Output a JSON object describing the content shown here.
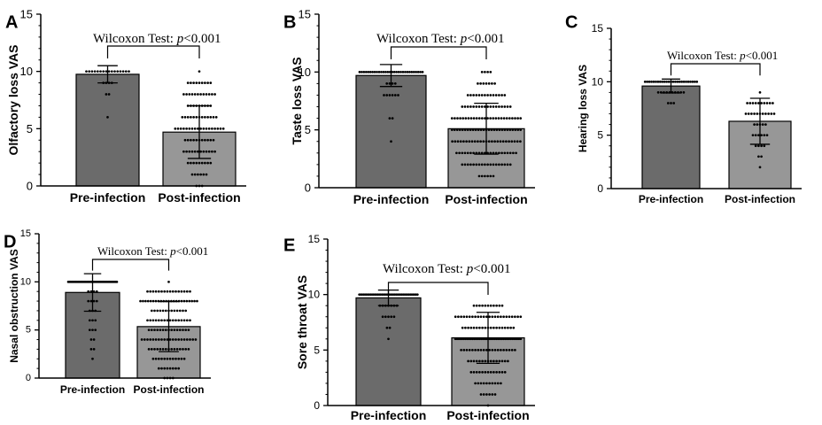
{
  "figure": {
    "annotation_label": "Wilcoxon Test: ",
    "annotation_p": "p",
    "annotation_value": "<0.001"
  },
  "colors": {
    "pre": "#6b6b6b",
    "post": "#979797",
    "ink": "#000000"
  },
  "chart_data": [
    {
      "panel": "A",
      "type": "bar",
      "ylabel": "Olfactory loss VAS",
      "categories": [
        "Pre-infection",
        "Post-infection"
      ],
      "values": [
        9.75,
        4.7
      ],
      "sd": [
        0.75,
        2.3
      ],
      "ylim": [
        0,
        15
      ],
      "yticks": [
        0,
        5,
        10,
        15
      ],
      "annotation": "Wilcoxon Test: p<0.001",
      "points": [
        [
          10,
          10,
          10,
          10,
          10,
          10,
          10,
          10,
          10,
          10,
          10,
          10,
          10,
          10,
          10,
          10,
          9,
          9,
          9,
          9,
          8,
          8,
          6
        ],
        [
          10,
          9,
          9,
          9,
          9,
          9,
          9,
          9,
          9,
          9,
          8,
          8,
          8,
          8,
          8,
          8,
          8,
          8,
          8,
          8,
          8,
          8,
          7,
          7,
          7,
          7,
          7,
          7,
          7,
          7,
          7,
          6,
          6,
          6,
          6,
          6,
          6,
          6,
          6,
          6,
          6,
          6,
          6,
          6,
          5,
          5,
          5,
          5,
          5,
          5,
          5,
          5,
          5,
          5,
          5,
          5,
          5,
          5,
          5,
          5,
          5,
          5,
          4,
          4,
          4,
          4,
          4,
          4,
          4,
          4,
          4,
          4,
          4,
          3,
          3,
          3,
          3,
          3,
          3,
          3,
          3,
          3,
          3,
          3,
          3,
          2,
          2,
          2,
          2,
          2,
          2,
          2,
          2,
          2,
          1,
          1,
          1,
          1,
          1,
          1,
          0,
          0,
          0
        ]
      ]
    },
    {
      "panel": "B",
      "type": "bar",
      "ylabel": "Taste loss VAS",
      "categories": [
        "Pre-infection",
        "Post-infection"
      ],
      "values": [
        9.7,
        5.1
      ],
      "sd": [
        0.95,
        2.2
      ],
      "ylim": [
        0,
        15
      ],
      "yticks": [
        0,
        5,
        10,
        15
      ],
      "annotation": "Wilcoxon Test: p<0.001",
      "points": [
        [
          10,
          10,
          10,
          10,
          10,
          10,
          10,
          10,
          10,
          10,
          10,
          10,
          10,
          10,
          10,
          10,
          10,
          10,
          10,
          10,
          10,
          10,
          10,
          10,
          10,
          10,
          10,
          10,
          10,
          10,
          9,
          9,
          9,
          9,
          8,
          8,
          8,
          8,
          8,
          8,
          6,
          6,
          4
        ],
        [
          10,
          10,
          10,
          10,
          9,
          9,
          9,
          9,
          9,
          9,
          9,
          8,
          8,
          8,
          8,
          8,
          8,
          8,
          8,
          8,
          8,
          8,
          8,
          8,
          8,
          7,
          7,
          7,
          7,
          7,
          7,
          7,
          7,
          7,
          7,
          7,
          7,
          7,
          7,
          7,
          7,
          7,
          7,
          6,
          6,
          6,
          6,
          6,
          6,
          6,
          6,
          6,
          6,
          6,
          6,
          6,
          6,
          6,
          6,
          6,
          6,
          6,
          6,
          6,
          6,
          6,
          6,
          6,
          6,
          5,
          5,
          5,
          5,
          5,
          5,
          5,
          5,
          5,
          5,
          5,
          5,
          5,
          5,
          5,
          5,
          5,
          5,
          5,
          5,
          5,
          5,
          5,
          5,
          5,
          5,
          5,
          4,
          4,
          4,
          4,
          4,
          4,
          4,
          4,
          4,
          4,
          4,
          4,
          4,
          4,
          4,
          4,
          4,
          4,
          4,
          4,
          4,
          4,
          4,
          4,
          4,
          3,
          3,
          3,
          3,
          3,
          3,
          3,
          3,
          3,
          3,
          3,
          3,
          3,
          3,
          3,
          3,
          3,
          3,
          3,
          3,
          3,
          3,
          2,
          2,
          2,
          2,
          2,
          2,
          2,
          2,
          2,
          2,
          2,
          2,
          2,
          2,
          2,
          2,
          2,
          2,
          1,
          1,
          1,
          1,
          1,
          1
        ]
      ]
    },
    {
      "panel": "C",
      "type": "bar",
      "ylabel": "Hearing loss VAS",
      "categories": [
        "Pre-infection",
        "Post-infection"
      ],
      "values": [
        9.6,
        6.3
      ],
      "sd": [
        0.65,
        2.15
      ],
      "ylim": [
        0,
        15
      ],
      "yticks": [
        0,
        5,
        10,
        15
      ],
      "annotation": "Wilcoxon Test: p<0.001",
      "points": [
        [
          10,
          10,
          10,
          10,
          10,
          10,
          10,
          10,
          10,
          10,
          10,
          10,
          10,
          10,
          10,
          10,
          10,
          10,
          10,
          10,
          10,
          10,
          10,
          10,
          10,
          9,
          9,
          9,
          9,
          9,
          9,
          9,
          9,
          9,
          9,
          8,
          8,
          8
        ],
        [
          9,
          8,
          8,
          8,
          8,
          8,
          8,
          8,
          8,
          8,
          8,
          7,
          7,
          7,
          7,
          7,
          7,
          7,
          7,
          7,
          7,
          7,
          6,
          6,
          6,
          6,
          6,
          5,
          5,
          5,
          5,
          5,
          5,
          4,
          4,
          4,
          4,
          3,
          3,
          2
        ]
      ]
    },
    {
      "panel": "D",
      "type": "bar",
      "ylabel": "Nasal obstruction VAS",
      "categories": [
        "Pre-infection",
        "Post-infection"
      ],
      "values": [
        8.9,
        5.35
      ],
      "sd": [
        1.95,
        2.6
      ],
      "ylim": [
        0,
        15
      ],
      "yticks": [
        0,
        5,
        10,
        15
      ],
      "annotation": "Wilcoxon Test: p<0.001",
      "points": [
        [
          10,
          10,
          10,
          10,
          10,
          10,
          10,
          10,
          10,
          10,
          10,
          10,
          10,
          10,
          10,
          10,
          10,
          10,
          10,
          10,
          10,
          10,
          10,
          10,
          10,
          10,
          10,
          10,
          10,
          10,
          10,
          10,
          10,
          10,
          10,
          10,
          10,
          10,
          10,
          10,
          9,
          9,
          9,
          9,
          8,
          8,
          8,
          8,
          7,
          7,
          7,
          6,
          6,
          6,
          5,
          5,
          5,
          4,
          4,
          3,
          3,
          2
        ],
        [
          10,
          9,
          9,
          9,
          9,
          9,
          9,
          9,
          9,
          9,
          9,
          9,
          9,
          9,
          9,
          9,
          9,
          8,
          8,
          8,
          8,
          8,
          8,
          8,
          8,
          8,
          8,
          8,
          8,
          8,
          8,
          8,
          8,
          8,
          8,
          8,
          8,
          8,
          8,
          8,
          7,
          7,
          7,
          7,
          7,
          7,
          7,
          7,
          7,
          7,
          7,
          7,
          7,
          6,
          6,
          6,
          6,
          6,
          6,
          6,
          6,
          6,
          6,
          6,
          6,
          6,
          6,
          6,
          6,
          5,
          5,
          5,
          5,
          5,
          5,
          5,
          5,
          5,
          5,
          5,
          5,
          5,
          5,
          5,
          4,
          4,
          4,
          4,
          4,
          4,
          4,
          4,
          4,
          4,
          4,
          4,
          4,
          4,
          4,
          4,
          4,
          4,
          4,
          4,
          3,
          3,
          3,
          3,
          3,
          3,
          3,
          3,
          3,
          3,
          3,
          3,
          3,
          3,
          3,
          2,
          2,
          2,
          2,
          2,
          2,
          2,
          2,
          2,
          2,
          2,
          2,
          1,
          1,
          1,
          1,
          1,
          1,
          1,
          1,
          0,
          0,
          0,
          0
        ]
      ]
    },
    {
      "panel": "E",
      "type": "bar",
      "ylabel": "Sore throat VAS",
      "categories": [
        "Pre-infection",
        "Post-infection"
      ],
      "values": [
        9.7,
        6.1
      ],
      "sd": [
        0.7,
        2.3
      ],
      "ylim": [
        0,
        15
      ],
      "yticks": [
        0,
        5,
        10,
        15
      ],
      "annotation": "Wilcoxon Test: p<0.001",
      "points": [
        [
          10,
          10,
          10,
          10,
          10,
          10,
          10,
          10,
          10,
          10,
          10,
          10,
          10,
          10,
          10,
          10,
          10,
          10,
          10,
          10,
          10,
          10,
          10,
          10,
          10,
          10,
          10,
          10,
          10,
          10,
          10,
          10,
          10,
          10,
          10,
          10,
          10,
          10,
          10,
          10,
          10,
          10,
          9,
          9,
          9,
          9,
          9,
          9,
          9,
          8,
          8,
          8,
          8,
          8,
          7,
          7,
          6
        ],
        [
          9,
          9,
          9,
          9,
          9,
          9,
          9,
          9,
          9,
          9,
          9,
          8,
          8,
          8,
          8,
          8,
          8,
          8,
          8,
          8,
          8,
          8,
          8,
          8,
          8,
          8,
          8,
          8,
          8,
          8,
          8,
          8,
          8,
          8,
          8,
          7,
          7,
          7,
          7,
          7,
          7,
          7,
          7,
          7,
          7,
          7,
          7,
          7,
          7,
          7,
          7,
          7,
          7,
          7,
          6,
          6,
          6,
          6,
          6,
          6,
          6,
          6,
          6,
          6,
          6,
          6,
          6,
          6,
          6,
          6,
          6,
          6,
          6,
          6,
          6,
          6,
          6,
          6,
          6,
          6,
          6,
          6,
          6,
          6,
          6,
          6,
          6,
          6,
          6,
          6,
          6,
          6,
          6,
          5,
          5,
          5,
          5,
          5,
          5,
          5,
          5,
          5,
          5,
          5,
          5,
          5,
          5,
          5,
          5,
          5,
          5,
          5,
          5,
          4,
          4,
          4,
          4,
          4,
          4,
          4,
          4,
          4,
          4,
          4,
          4,
          4,
          4,
          4,
          3,
          3,
          3,
          3,
          3,
          3,
          3,
          3,
          3,
          3,
          3,
          3,
          3,
          2,
          2,
          2,
          2,
          2,
          2,
          2,
          2,
          2,
          2,
          1,
          1,
          1,
          1,
          1,
          1,
          0
        ]
      ]
    }
  ]
}
